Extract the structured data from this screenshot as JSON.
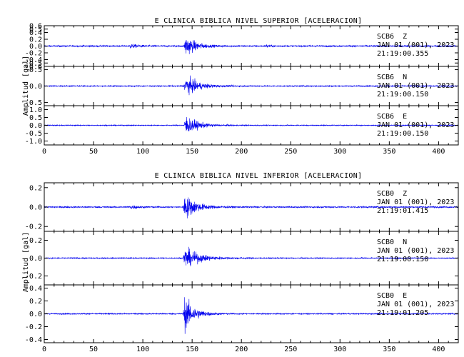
{
  "colors": {
    "trace": "#0000ee",
    "axis": "#000000",
    "background": "#ffffff"
  },
  "chart_data": [
    {
      "type": "line",
      "title": "E CLINICA BIBLICA NIVEL SUPERIOR [ACELERACION]",
      "ylabel": "Amplitud [gal]",
      "xlim": [
        0,
        420
      ],
      "xticks": [
        "0",
        "50",
        "100",
        "150",
        "200",
        "250",
        "300",
        "350",
        "400"
      ],
      "grid": false,
      "panels": [
        {
          "station": "SCB6",
          "component": "Z",
          "date": "JAN 01 (001), 2023",
          "time": "21:19:00.355",
          "ylim": [
            -0.6,
            0.6
          ],
          "yticks": [
            "0.6",
            "0.5",
            "0.4",
            "0.2",
            "0.0",
            "-0.2",
            "-0.4",
            "-0.5",
            "-0.6"
          ],
          "noise": 0.035,
          "events": [
            {
              "t": 87,
              "amp": 0.1,
              "decay": 8
            },
            {
              "t": 143,
              "amp": 0.55,
              "decay": 10
            },
            {
              "t": 225,
              "amp": 0.06,
              "decay": 5
            }
          ]
        },
        {
          "station": "SCB6",
          "component": "N",
          "date": "JAN 01 (001), 2023",
          "time": "21:19:00.150",
          "ylim": [
            -0.6,
            0.6
          ],
          "yticks": [
            "0.5",
            "0.0",
            "-0.5"
          ],
          "noise": 0.03,
          "events": [
            {
              "t": 143,
              "amp": 0.55,
              "decay": 12
            }
          ]
        },
        {
          "station": "SCB6",
          "component": "E",
          "date": "JAN 01 (001), 2023",
          "time": "21:19:00.150",
          "ylim": [
            -1.25,
            1.25
          ],
          "yticks": [
            "1.0",
            "0.5",
            "0.0",
            "-0.5",
            "-1.0"
          ],
          "noise": 0.05,
          "events": [
            {
              "t": 143,
              "amp": 1.1,
              "decay": 12
            }
          ]
        }
      ]
    },
    {
      "type": "line",
      "title": "E CLINICA BIBLICA NIVEL INFERIOR [ACELERACION]",
      "ylabel": "Amplitud [gal]",
      "xlim": [
        0,
        420
      ],
      "xticks": [
        "0",
        "50",
        "100",
        "150",
        "200",
        "250",
        "300",
        "350",
        "400"
      ],
      "grid": false,
      "panels": [
        {
          "station": "SCB0",
          "component": "Z",
          "date": "JAN 01 (001), 2023",
          "time": "21:19:01.415",
          "ylim": [
            -0.25,
            0.25
          ],
          "yticks": [
            "0.2",
            "0.0",
            "-0.2"
          ],
          "noise": 0.012,
          "events": [
            {
              "t": 88,
              "amp": 0.03,
              "decay": 8
            },
            {
              "t": 142,
              "amp": 0.22,
              "decay": 12
            }
          ]
        },
        {
          "station": "SCB0",
          "component": "N",
          "date": "JAN 01 (001), 2023",
          "time": "21:19:00.150",
          "ylim": [
            -0.3,
            0.3
          ],
          "yticks": [
            "0.2",
            "0.0",
            "-0.2"
          ],
          "noise": 0.01,
          "events": [
            {
              "t": 142,
              "amp": 0.2,
              "decay": 15
            }
          ]
        },
        {
          "station": "SCB0",
          "component": "E",
          "date": "JAN 01 (001), 2023",
          "time": "21:19:01.205",
          "ylim": [
            -0.45,
            0.45
          ],
          "yticks": [
            "0.4",
            "0.2",
            "0.0",
            "-0.2",
            "-0.4"
          ],
          "noise": 0.015,
          "events": [
            {
              "t": 142,
              "amp": 0.45,
              "decay": 10
            }
          ]
        }
      ]
    }
  ]
}
